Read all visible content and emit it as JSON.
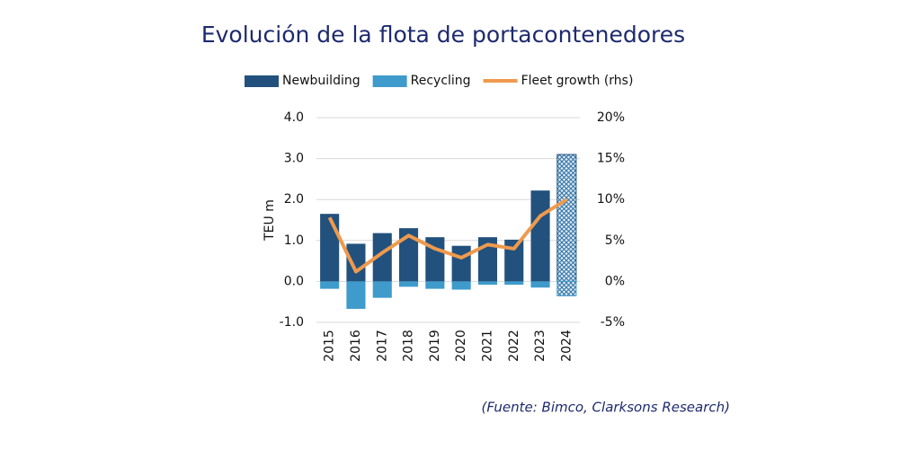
{
  "chart_data": {
    "type": "bar",
    "title": "Evolución de la flota de portacontenedores",
    "y_label": "TEU m",
    "source": "(Fuente: Bimco, Clarksons Research)",
    "categories": [
      "2015",
      "2016",
      "2017",
      "2018",
      "2019",
      "2020",
      "2021",
      "2022",
      "2023",
      "2024"
    ],
    "hatched": [
      false,
      false,
      false,
      false,
      false,
      false,
      false,
      false,
      false,
      true
    ],
    "series": [
      {
        "name": "Newbuilding",
        "type": "bar",
        "color": "#22517d",
        "values": [
          1.65,
          0.92,
          1.18,
          1.3,
          1.08,
          0.87,
          1.08,
          1.02,
          2.22,
          3.1
        ]
      },
      {
        "name": "Recycling",
        "type": "bar",
        "color": "#3e9bcb",
        "values": [
          -0.18,
          -0.67,
          -0.4,
          -0.13,
          -0.18,
          -0.2,
          -0.08,
          -0.08,
          -0.15,
          -0.35
        ]
      },
      {
        "name": "Fleet growth (rhs)",
        "type": "line",
        "axis": "y2",
        "color": "#ee9a4d",
        "values": [
          7.8,
          1.2,
          3.5,
          5.6,
          4.0,
          2.9,
          4.5,
          4.0,
          8.0,
          10.0
        ]
      }
    ],
    "ylim": [
      -1,
      4
    ],
    "yticks": [
      {
        "value": -1,
        "label": "-1.0"
      },
      {
        "value": 0,
        "label": "0.0"
      },
      {
        "value": 1,
        "label": "1.0"
      },
      {
        "value": 2,
        "label": "2.0"
      },
      {
        "value": 3,
        "label": "3.0"
      },
      {
        "value": 4,
        "label": "4.0"
      }
    ],
    "y2lim": [
      -5,
      20
    ],
    "y2ticks": [
      {
        "value": -5,
        "label": "-5%"
      },
      {
        "value": 0,
        "label": "0%"
      },
      {
        "value": 5,
        "label": "5%"
      },
      {
        "value": 10,
        "label": "10%"
      },
      {
        "value": 15,
        "label": "15%"
      },
      {
        "value": 20,
        "label": "20%"
      }
    ],
    "grid": true,
    "legend": "top"
  }
}
